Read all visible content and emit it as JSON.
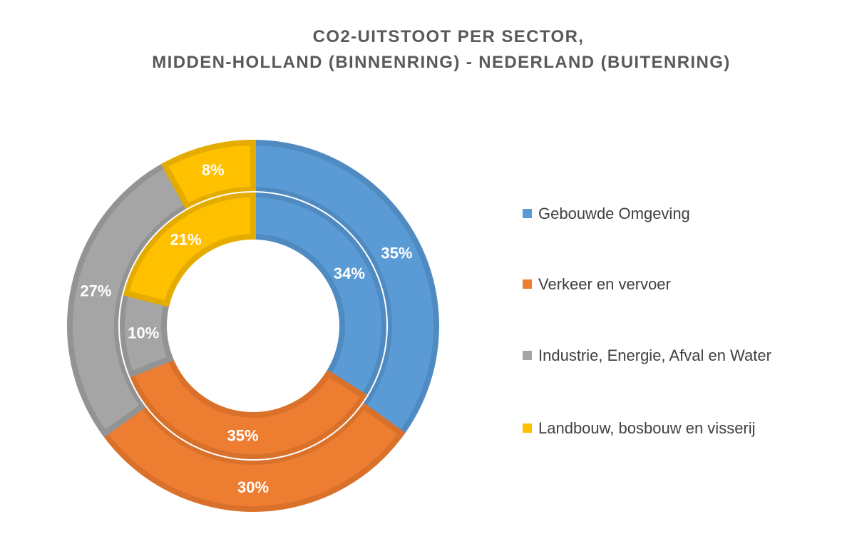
{
  "chart_data": {
    "type": "doughnut",
    "title": [
      "CO2-UITSTOOT PER SECTOR,",
      "MIDDEN-HOLLAND (BINNENRING) - NEDERLAND (BUITENRING)"
    ],
    "categories": [
      "Gebouwde Omgeving",
      "Verkeer en vervoer",
      "Industrie, Energie, Afval en Water",
      "Landbouw, bosbouw en visserij"
    ],
    "colors": [
      "#5B9BD5",
      "#ED7D31",
      "#A5A5A5",
      "#FFC000"
    ],
    "border_colors": [
      "#4F8BC1",
      "#D9712B",
      "#939393",
      "#E5AC00"
    ],
    "series": [
      {
        "ring": "inner",
        "values": [
          34,
          35,
          10,
          21
        ],
        "labels": [
          "34%",
          "35%",
          "10%",
          "21%"
        ]
      },
      {
        "ring": "outer",
        "values": [
          35,
          30,
          27,
          8
        ],
        "labels": [
          "35%",
          "30%",
          "27%",
          "8%"
        ]
      }
    ],
    "legend_position": "right"
  }
}
